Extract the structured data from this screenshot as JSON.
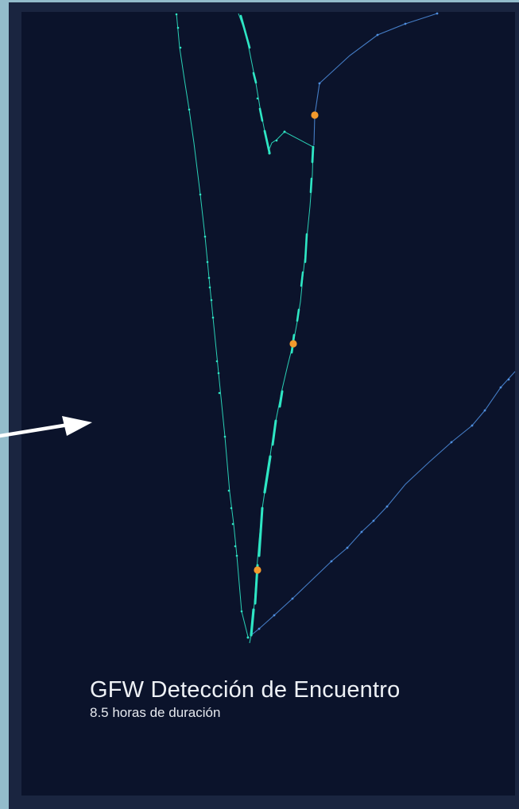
{
  "map": {
    "colors": {
      "outer_background": "#93bccb",
      "frame": "#1a2540",
      "sea": "#0b132b",
      "track_carrier": "#2ee6c4",
      "track_other": "#4f8fe0",
      "encounter_marker": "#f3992b",
      "arrow": "#ffffff"
    },
    "icons": {
      "pointer": "arrow-icon",
      "event": "encounter-marker-icon"
    }
  },
  "caption": {
    "title": "GFW Detección de Encuentro",
    "subtitle": "8.5 horas de duración"
  }
}
